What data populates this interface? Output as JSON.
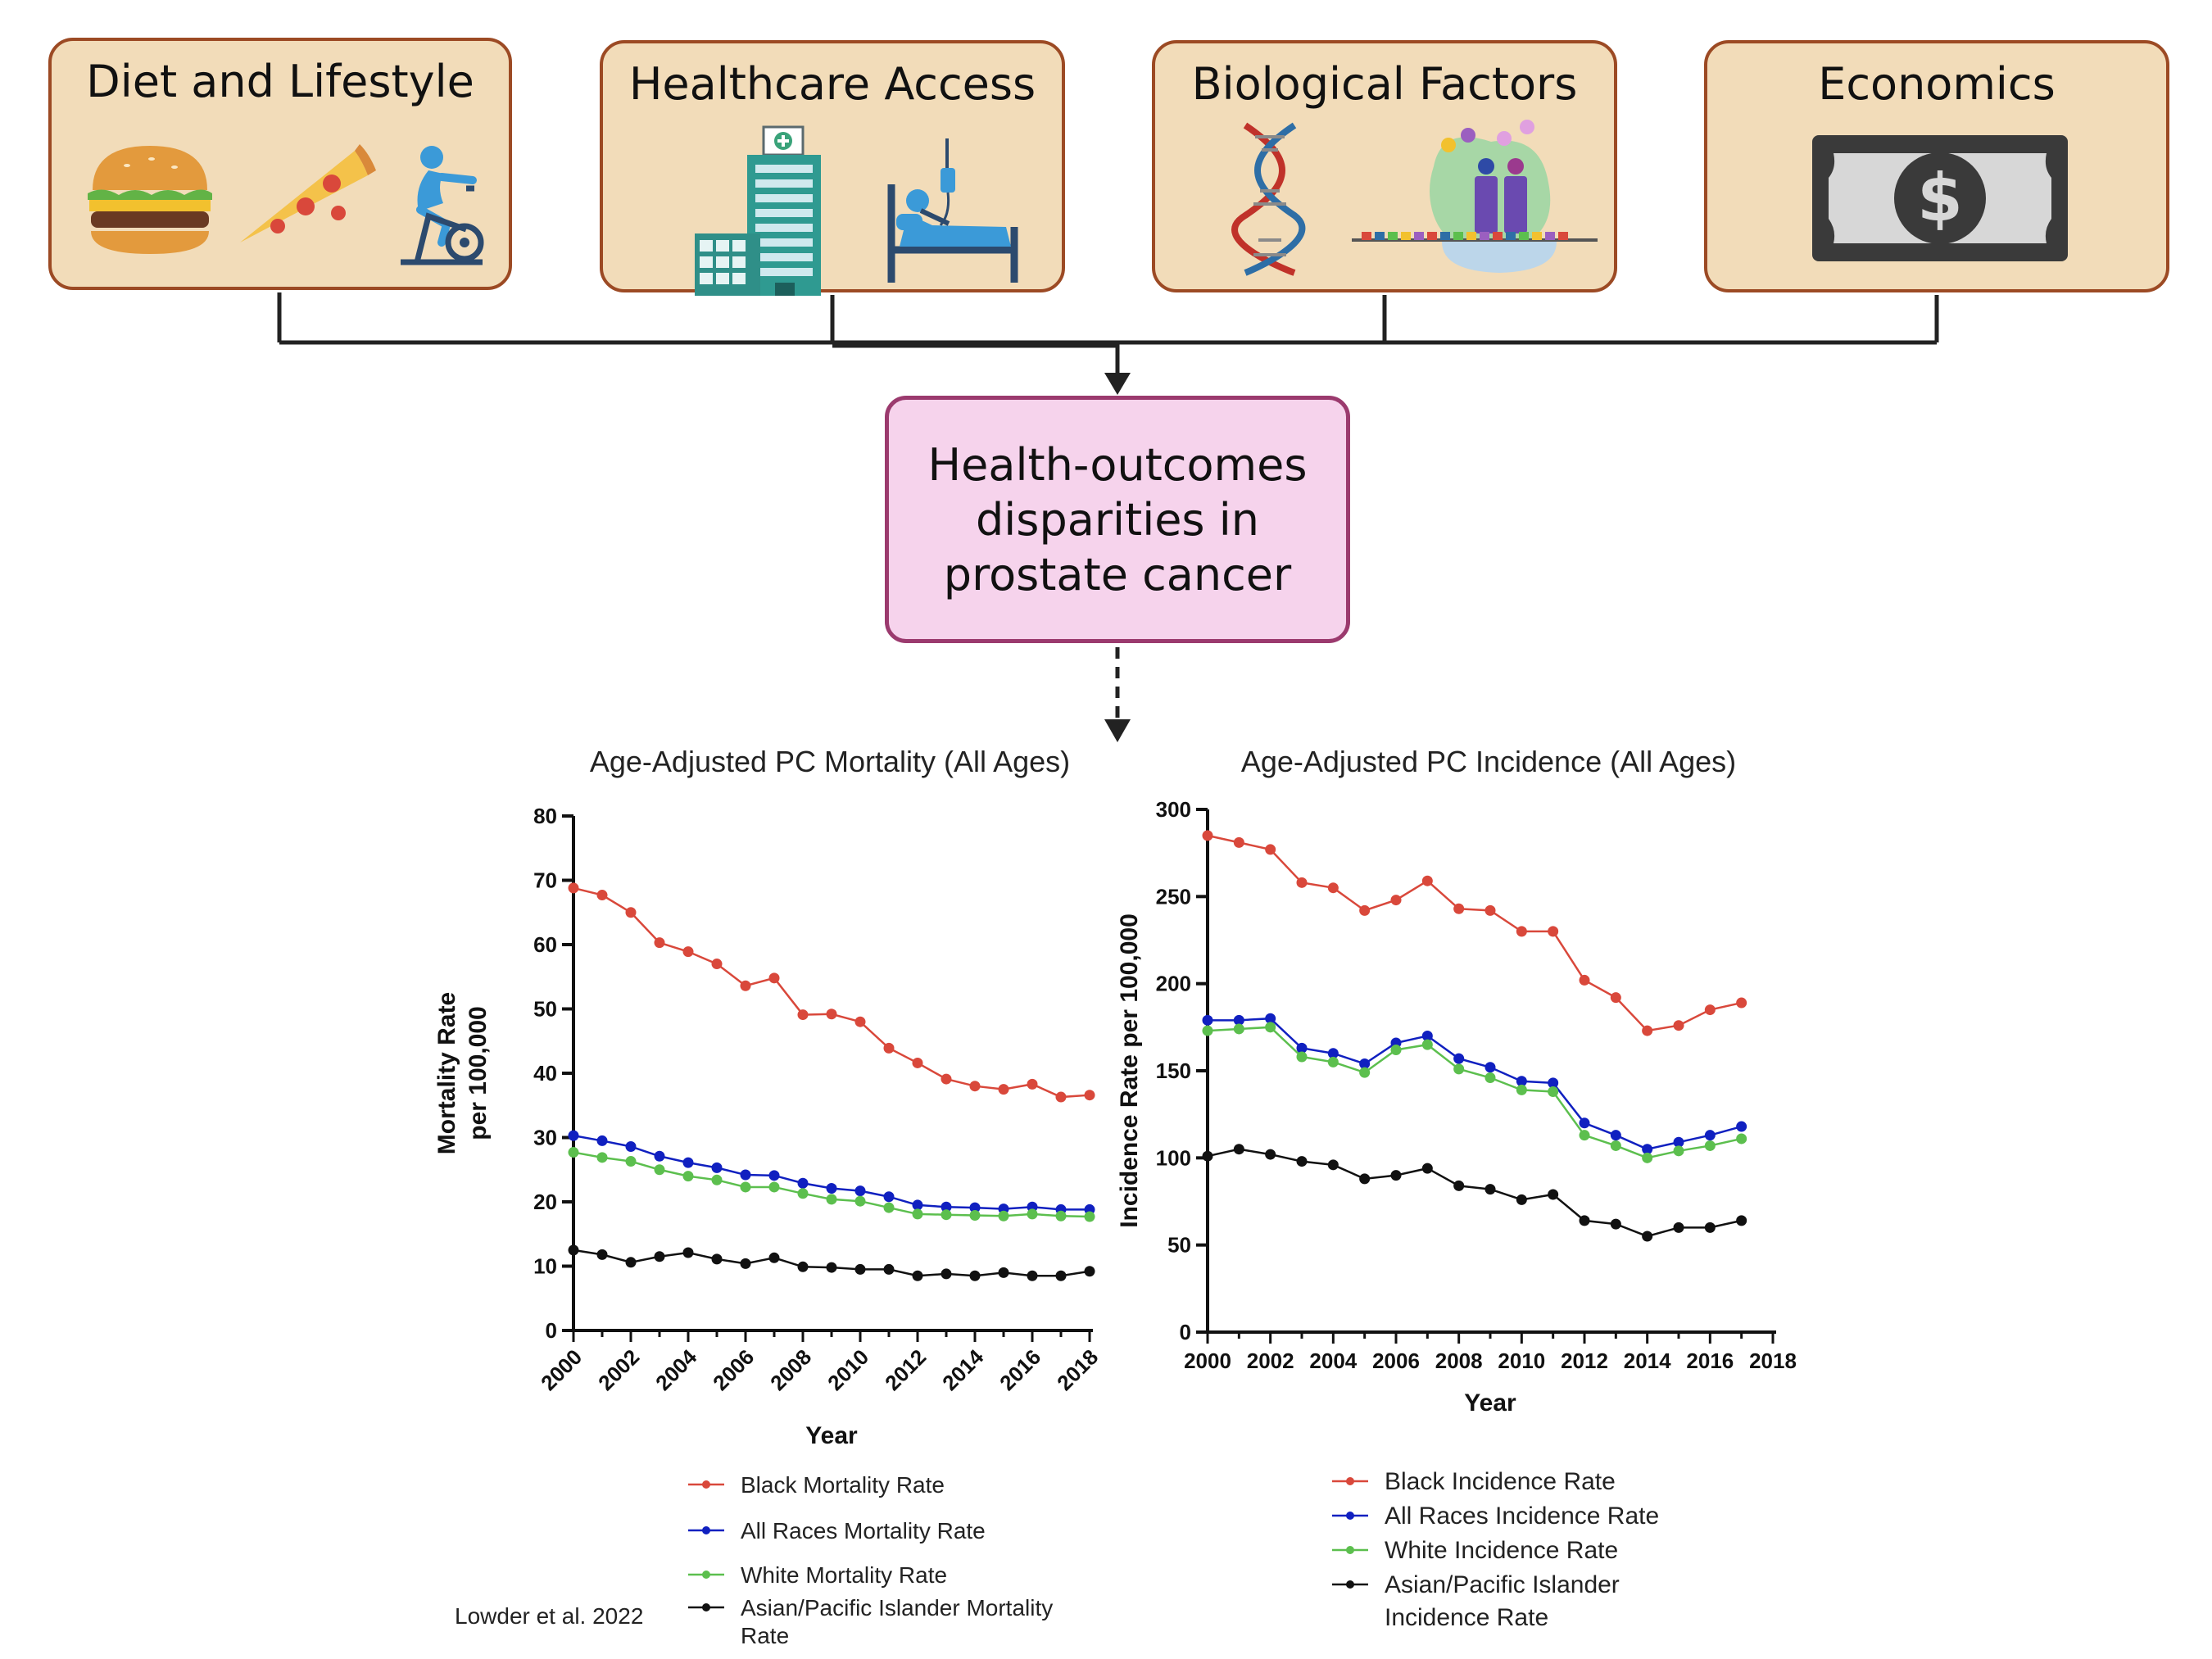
{
  "factors": [
    {
      "title": "Diet and Lifestyle",
      "icons": [
        "burger-icon",
        "pizza-icon",
        "exercise-bike-icon"
      ]
    },
    {
      "title": "Healthcare Access",
      "icons": [
        "hospital-icon",
        "patient-bed-icon"
      ]
    },
    {
      "title": "Biological Factors",
      "icons": [
        "dna-icon",
        "protein-complex-icon"
      ]
    },
    {
      "title": "Economics",
      "icons": [
        "dollar-bill-icon"
      ]
    }
  ],
  "outcome": {
    "text": "Health-outcomes disparities in prostate cancer"
  },
  "colors": {
    "factor_fill": "#f2dcb9",
    "factor_border": "#9c4a24",
    "outcome_fill": "#f6d3ec",
    "outcome_border": "#9b3a6e",
    "black": "#d9483b",
    "all_races": "#1020c0",
    "white": "#5cbf4e",
    "asian_pi": "#111111"
  },
  "chart_data": [
    {
      "type": "line",
      "title": "Age-Adjusted PC Mortality (All Ages)",
      "xlabel": "Year",
      "ylabel": "Mortality Rate per 100,000",
      "ylabel_lines": [
        "Mortality Rate",
        "per 100,000"
      ],
      "xlim": [
        2000,
        2018
      ],
      "ylim": [
        0,
        80
      ],
      "x_ticks": [
        "2000",
        "2002",
        "2004",
        "2006",
        "2008",
        "2010",
        "2012",
        "2014",
        "2016",
        "2018"
      ],
      "y_ticks": [
        "0",
        "10",
        "20",
        "30",
        "40",
        "50",
        "60",
        "70",
        "80"
      ],
      "x": [
        2000,
        2001,
        2002,
        2003,
        2004,
        2005,
        2006,
        2007,
        2008,
        2009,
        2010,
        2011,
        2012,
        2013,
        2014,
        2015,
        2016,
        2017,
        2018
      ],
      "series": [
        {
          "name": "Black Mortality Rate",
          "color": "#d9483b",
          "values": [
            68.8,
            67.7,
            65.0,
            60.3,
            58.9,
            57.0,
            53.6,
            54.8,
            49.1,
            49.2,
            48.0,
            43.9,
            41.6,
            39.1,
            38.0,
            37.5,
            38.3,
            36.3,
            36.6
          ]
        },
        {
          "name": "All Races Mortality Rate",
          "color": "#1020c0",
          "values": [
            30.3,
            29.5,
            28.6,
            27.1,
            26.1,
            25.3,
            24.2,
            24.1,
            22.9,
            22.1,
            21.7,
            20.8,
            19.5,
            19.2,
            19.1,
            18.9,
            19.2,
            18.8,
            18.8
          ]
        },
        {
          "name": "White Mortality Rate",
          "color": "#5cbf4e",
          "values": [
            27.7,
            26.9,
            26.3,
            25.0,
            24.0,
            23.4,
            22.3,
            22.3,
            21.3,
            20.4,
            20.1,
            19.1,
            18.1,
            18.0,
            17.9,
            17.8,
            18.1,
            17.8,
            17.7
          ]
        },
        {
          "name": "Asian/Pacific Islander Mortality Rate",
          "color": "#111111",
          "legend_lines": [
            "Asian/Pacific Islander Mortality",
            "Rate"
          ],
          "values": [
            12.5,
            11.8,
            10.6,
            11.5,
            12.1,
            11.1,
            10.4,
            11.3,
            9.9,
            9.8,
            9.5,
            9.5,
            8.5,
            8.8,
            8.5,
            9.0,
            8.5,
            8.5,
            9.2
          ]
        }
      ],
      "legend_position": "below"
    },
    {
      "type": "line",
      "title": "Age-Adjusted PC Incidence (All Ages)",
      "xlabel": "Year",
      "ylabel": "Incidence Rate per 100,000",
      "xlim": [
        2000,
        2018
      ],
      "ylim": [
        0,
        300
      ],
      "x_ticks": [
        "2000",
        "2002",
        "2004",
        "2006",
        "2008",
        "2010",
        "2012",
        "2014",
        "2016",
        "2018"
      ],
      "y_ticks": [
        "0",
        "50",
        "100",
        "150",
        "200",
        "250",
        "300"
      ],
      "x": [
        2000,
        2001,
        2002,
        2003,
        2004,
        2005,
        2006,
        2007,
        2008,
        2009,
        2010,
        2011,
        2012,
        2013,
        2014,
        2015,
        2016,
        2017
      ],
      "series": [
        {
          "name": "Black Incidence Rate",
          "color": "#d9483b",
          "values": [
            285,
            281,
            277,
            258,
            255,
            242,
            248,
            259,
            243,
            242,
            230,
            230,
            202,
            192,
            173,
            176,
            185,
            189
          ]
        },
        {
          "name": "All Races Incidence Rate",
          "color": "#1020c0",
          "values": [
            179,
            179,
            180,
            163,
            160,
            154,
            166,
            170,
            157,
            152,
            144,
            143,
            120,
            113,
            105,
            109,
            113,
            118
          ]
        },
        {
          "name": "White Incidence Rate",
          "color": "#5cbf4e",
          "values": [
            173,
            174,
            175,
            158,
            155,
            149,
            162,
            165,
            151,
            146,
            139,
            138,
            113,
            107,
            100,
            104,
            107,
            111
          ]
        },
        {
          "name": "Asian/Pacific Islander Incidence Rate",
          "color": "#111111",
          "legend_lines": [
            "Asian/Pacific Islander",
            "Incidence Rate"
          ],
          "values": [
            101,
            105,
            102,
            98,
            96,
            88,
            90,
            94,
            84,
            82,
            76,
            79,
            64,
            62,
            55,
            60,
            60,
            64
          ]
        }
      ],
      "legend_position": "below"
    }
  ],
  "citation": "Lowder et al. 2022"
}
